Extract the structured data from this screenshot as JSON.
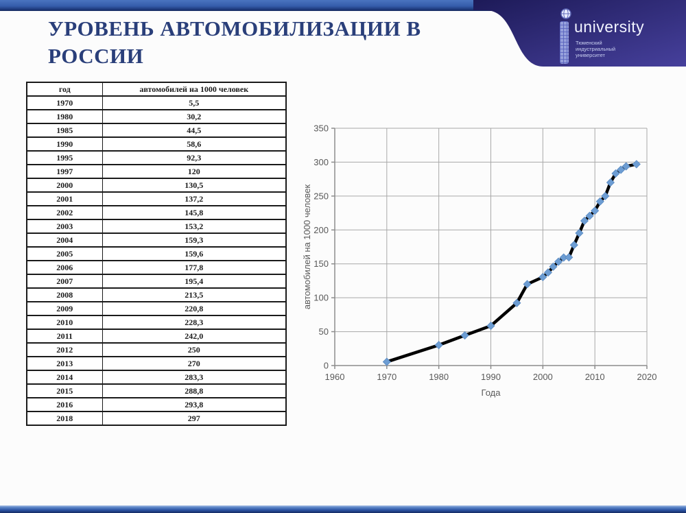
{
  "header": {
    "title_line1": "УРОВЕНЬ АВТОМОБИЛИЗАЦИИ В",
    "title_line2": "РОССИИ",
    "logo": {
      "name": "university",
      "subtitle_lines": [
        "Тюменский",
        "индустриальный",
        "университет"
      ]
    }
  },
  "table": {
    "columns": [
      "год",
      "автомобилей на 1000 человек"
    ],
    "rows": [
      [
        "1970",
        "5,5"
      ],
      [
        "1980",
        "30,2"
      ],
      [
        "1985",
        "44,5"
      ],
      [
        "1990",
        "58,6"
      ],
      [
        "1995",
        "92,3"
      ],
      [
        "1997",
        "120"
      ],
      [
        "2000",
        "130,5"
      ],
      [
        "2001",
        "137,2"
      ],
      [
        "2002",
        "145,8"
      ],
      [
        "2003",
        "153,2"
      ],
      [
        "2004",
        "159,3"
      ],
      [
        "2005",
        "159,6"
      ],
      [
        "2006",
        "177,8"
      ],
      [
        "2007",
        "195,4"
      ],
      [
        "2008",
        "213,5"
      ],
      [
        "2009",
        "220,8"
      ],
      [
        "2010",
        "228,3"
      ],
      [
        "2011",
        "242,0"
      ],
      [
        "2012",
        "250"
      ],
      [
        "2013",
        "270"
      ],
      [
        "2014",
        "283,3"
      ],
      [
        "2015",
        "288,8"
      ],
      [
        "2016",
        "293,8"
      ],
      [
        "2018",
        "297"
      ]
    ]
  },
  "chart_data": {
    "type": "line",
    "title": "",
    "xlabel": "Года",
    "ylabel": "автомобилей на 1000 человек",
    "x": [
      1970,
      1980,
      1985,
      1990,
      1995,
      1997,
      2000,
      2001,
      2002,
      2003,
      2004,
      2005,
      2006,
      2007,
      2008,
      2009,
      2010,
      2011,
      2012,
      2013,
      2014,
      2015,
      2016,
      2018
    ],
    "y": [
      5.5,
      30.2,
      44.5,
      58.6,
      92.3,
      120,
      130.5,
      137.2,
      145.8,
      153.2,
      159.3,
      159.6,
      177.8,
      195.4,
      213.5,
      220.8,
      228.3,
      242.0,
      250,
      270,
      283.3,
      288.8,
      293.8,
      297
    ],
    "xlim": [
      1960,
      2020
    ],
    "ylim": [
      0,
      350
    ],
    "xticks": [
      1960,
      1970,
      1980,
      1990,
      2000,
      2010,
      2020
    ],
    "yticks": [
      0,
      50,
      100,
      150,
      200,
      250,
      300,
      350
    ],
    "grid": true,
    "legend_position": "none",
    "line_color": "#000000",
    "marker_color": "#6d9dd3",
    "marker_edge_color": "#5a8ac2",
    "grid_color": "#a8a8a8",
    "axis_color": "#8c8c8c",
    "tick_label_color": "#595959"
  },
  "colors": {
    "title": "#2a3f7a",
    "banner_dark": "#1d1a58",
    "banner_light": "#46409c"
  }
}
